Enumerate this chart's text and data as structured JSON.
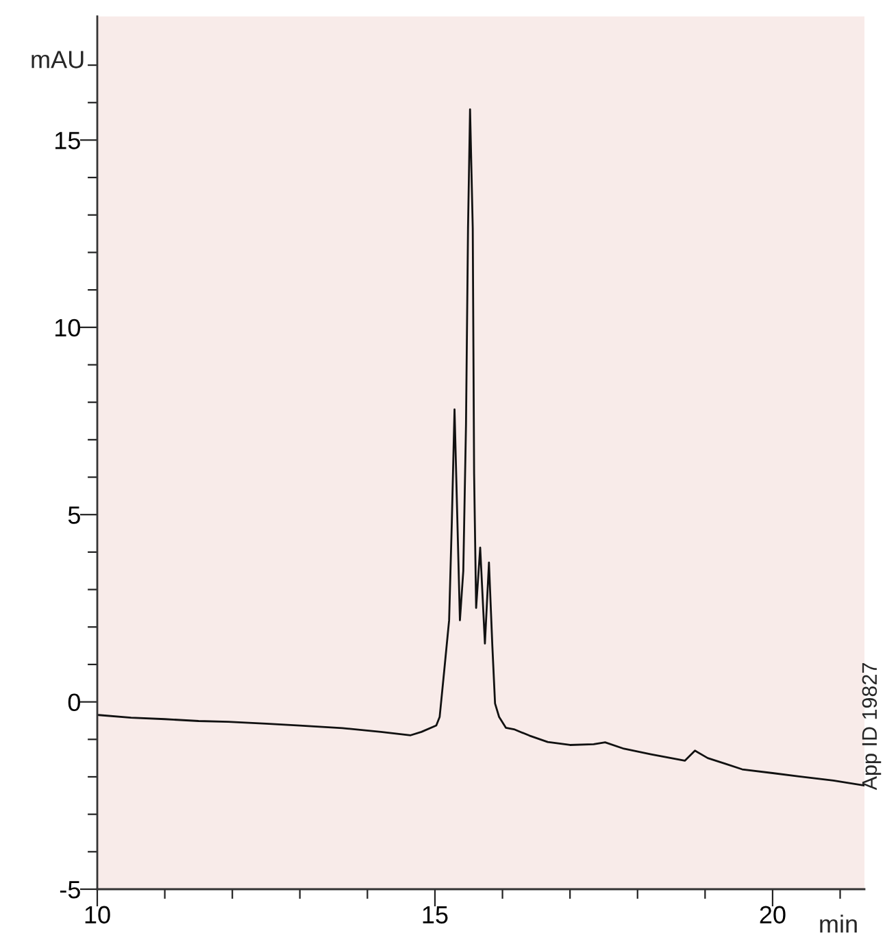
{
  "chart_data": {
    "type": "line",
    "xlabel": "min",
    "ylabel": "mAU",
    "annotations": [
      "App ID 19827"
    ],
    "xlim": [
      10,
      21.36
    ],
    "ylim": [
      -5,
      18.3
    ],
    "xticks": [
      10,
      {
        "value": 11,
        "label": null
      },
      {
        "value": 12,
        "label": null
      },
      {
        "value": 13,
        "label": null
      },
      {
        "value": 14,
        "label": null
      },
      15,
      {
        "value": 16,
        "label": null
      },
      {
        "value": 17,
        "label": null
      },
      {
        "value": 18,
        "label": null
      },
      {
        "value": 19,
        "label": null
      },
      20,
      {
        "value": 21,
        "label": null
      }
    ],
    "yticks": [
      -5,
      {
        "value": -4,
        "label": null
      },
      {
        "value": -3,
        "label": null
      },
      {
        "value": -2,
        "label": null
      },
      {
        "value": -1,
        "label": null
      },
      0,
      {
        "value": 1,
        "label": null
      },
      {
        "value": 2,
        "label": null
      },
      {
        "value": 3,
        "label": null
      },
      {
        "value": 4,
        "label": null
      },
      5,
      {
        "value": 6,
        "label": null
      },
      {
        "value": 7,
        "label": null
      },
      {
        "value": 8,
        "label": null
      },
      {
        "value": 9,
        "label": null
      },
      10,
      {
        "value": 11,
        "label": null
      },
      {
        "value": 12,
        "label": null
      },
      {
        "value": 13,
        "label": null
      },
      {
        "value": 14,
        "label": null
      },
      15,
      {
        "value": 16,
        "label": null
      },
      {
        "value": 17,
        "label": null
      }
    ],
    "grid": false,
    "legend": false,
    "marker": "none",
    "line_style": "solid",
    "series": [
      {
        "color": "#111111",
        "x": [
          10.02,
          10.5,
          11.0,
          11.5,
          11.94,
          12.5,
          13.0,
          13.63,
          14.2,
          14.64,
          14.8,
          15.02,
          15.07,
          15.14,
          15.21,
          15.25,
          15.29,
          15.33,
          15.37,
          15.42,
          15.46,
          15.49,
          15.52,
          15.56,
          15.58,
          15.61,
          15.67,
          15.74,
          15.8,
          15.85,
          15.89,
          15.95,
          16.05,
          16.17,
          16.4,
          16.67,
          17.0,
          17.35,
          17.52,
          17.8,
          18.2,
          18.7,
          18.85,
          19.04,
          19.3,
          19.55,
          20.0,
          20.39,
          20.9,
          21.36
        ],
        "values": [
          -0.35,
          -0.42,
          -0.46,
          -0.51,
          -0.53,
          -0.58,
          -0.63,
          -0.7,
          -0.8,
          -0.89,
          -0.8,
          -0.63,
          -0.4,
          0.88,
          2.18,
          4.8,
          7.81,
          5.0,
          2.18,
          3.5,
          7.4,
          12.65,
          15.82,
          12.65,
          6.1,
          2.51,
          4.12,
          1.56,
          3.72,
          1.5,
          -0.04,
          -0.4,
          -0.69,
          -0.73,
          -0.9,
          -1.07,
          -1.15,
          -1.13,
          -1.08,
          -1.25,
          -1.4,
          -1.57,
          -1.3,
          -1.5,
          -1.65,
          -1.8,
          -1.9,
          -1.99,
          -2.1,
          -2.23
        ]
      }
    ]
  }
}
